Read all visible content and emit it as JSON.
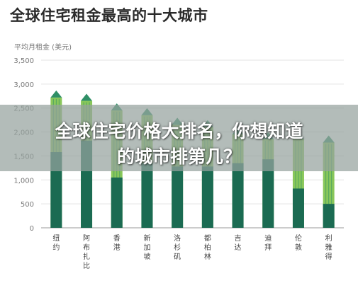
{
  "headline": {
    "line1": "全球住宅价格大排名，你想知道",
    "line2": "的城市排第几？"
  },
  "colors": {
    "bar_dark": "#1b6b52",
    "bar_light": "#2f8f66",
    "bar_lime": "#7cc148",
    "overlay": "#96a29e"
  },
  "chart_data": {
    "type": "bar",
    "title": "全球住宅租金最高的十大城市",
    "ylabel": "平均月租金 (美元)",
    "xlabel": "",
    "ylim": [
      0,
      3500
    ],
    "yticks": [
      "0",
      "500",
      "1,000",
      "1,500",
      "2,000",
      "2,500",
      "3,000",
      "3,500"
    ],
    "grid": true,
    "categories": [
      "纽约",
      "阿布扎比",
      "香港",
      "新加坡",
      "洛杉矶",
      "都柏林",
      "吉达",
      "迪拜",
      "伦敦",
      "利雅得"
    ],
    "series": [
      {
        "values": [
          2720,
          2650,
          2450,
          2350,
          2150,
          2100,
          1950,
          1850,
          1850,
          1780
        ]
      }
    ],
    "band_values": [
      1580,
      1820,
      1050,
      1350,
      1280,
      1280,
      1350,
      1430,
      820,
      500
    ]
  }
}
